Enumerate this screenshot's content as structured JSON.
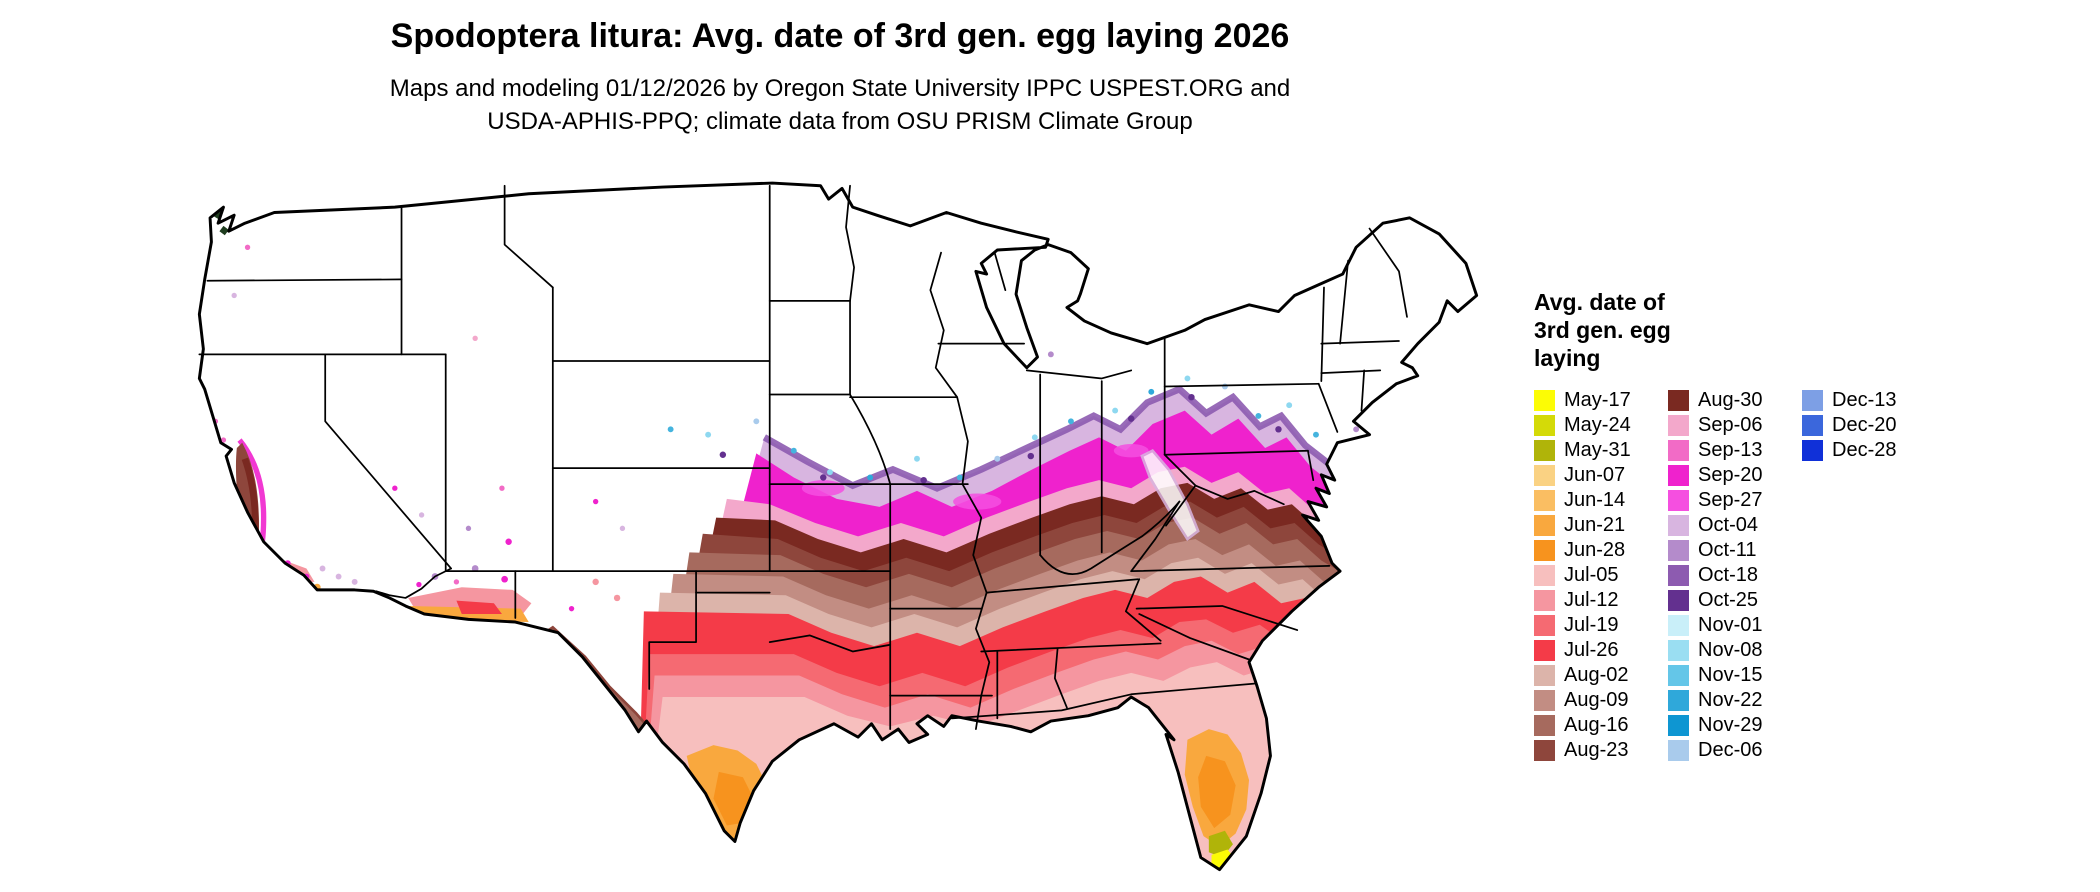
{
  "title": "Spodoptera litura: Avg. date of 3rd gen. egg laying 2026",
  "subtitle_line1": "Maps and modeling 01/12/2026 by Oregon State University IPPC USPEST.ORG and",
  "subtitle_line2": "USDA-APHIS-PPQ; climate data from OSU PRISM Climate Group",
  "legend": {
    "title_line1": "Avg. date of",
    "title_line2": "3rd gen. egg",
    "title_line3": "laying",
    "entries": [
      {
        "label": "May-17",
        "color": "#FCFC05"
      },
      {
        "label": "May-24",
        "color": "#D4DA08"
      },
      {
        "label": "May-31",
        "color": "#B0B409"
      },
      {
        "label": "Jun-07",
        "color": "#FAD283"
      },
      {
        "label": "Jun-14",
        "color": "#FABE62"
      },
      {
        "label": "Jun-21",
        "color": "#F9A83E"
      },
      {
        "label": "Jun-28",
        "color": "#F7931E"
      },
      {
        "label": "Jul-05",
        "color": "#F7BFBE"
      },
      {
        "label": "Jul-12",
        "color": "#F596A0"
      },
      {
        "label": "Jul-19",
        "color": "#F56A72"
      },
      {
        "label": "Jul-26",
        "color": "#F43B48"
      },
      {
        "label": "Aug-02",
        "color": "#DCB4AA"
      },
      {
        "label": "Aug-09",
        "color": "#C28D83"
      },
      {
        "label": "Aug-16",
        "color": "#A66A5E"
      },
      {
        "label": "Aug-23",
        "color": "#8E463C"
      },
      {
        "label": "Aug-30",
        "color": "#7A2921"
      },
      {
        "label": "Sep-06",
        "color": "#F3A8CB"
      },
      {
        "label": "Sep-13",
        "color": "#F26BC6"
      },
      {
        "label": "Sep-20",
        "color": "#EF22CD"
      },
      {
        "label": "Sep-27",
        "color": "#F54FE0"
      },
      {
        "label": "Oct-04",
        "color": "#D8B5E0"
      },
      {
        "label": "Oct-11",
        "color": "#B48BCB"
      },
      {
        "label": "Oct-18",
        "color": "#8D5BB0"
      },
      {
        "label": "Oct-25",
        "color": "#63308F"
      },
      {
        "label": "Nov-01",
        "color": "#C9EFF9"
      },
      {
        "label": "Nov-08",
        "color": "#9ADEF2"
      },
      {
        "label": "Nov-15",
        "color": "#64C6E8"
      },
      {
        "label": "Nov-22",
        "color": "#2FA8DA"
      },
      {
        "label": "Nov-29",
        "color": "#0E96D2"
      },
      {
        "label": "Dec-06",
        "color": "#A9CBEC"
      },
      {
        "label": "Dec-13",
        "color": "#7D9FE5"
      },
      {
        "label": "Dec-20",
        "color": "#3B67DC"
      },
      {
        "label": "Dec-28",
        "color": "#1030D8"
      }
    ]
  }
}
